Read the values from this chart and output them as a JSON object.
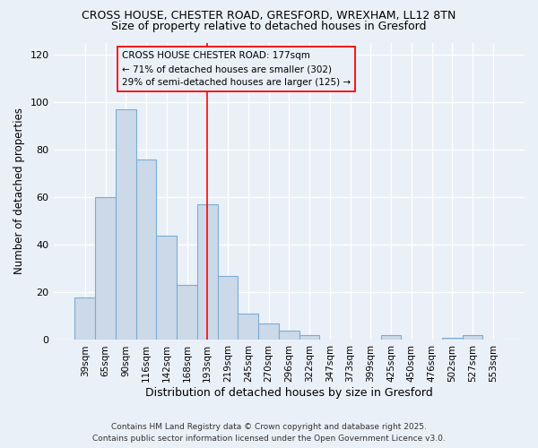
{
  "title1": "CROSS HOUSE, CHESTER ROAD, GRESFORD, WREXHAM, LL12 8TN",
  "title2": "Size of property relative to detached houses in Gresford",
  "xlabel": "Distribution of detached houses by size in Gresford",
  "ylabel": "Number of detached properties",
  "categories": [
    "39sqm",
    "65sqm",
    "90sqm",
    "116sqm",
    "142sqm",
    "168sqm",
    "193sqm",
    "219sqm",
    "245sqm",
    "270sqm",
    "296sqm",
    "322sqm",
    "347sqm",
    "373sqm",
    "399sqm",
    "425sqm",
    "450sqm",
    "476sqm",
    "502sqm",
    "527sqm",
    "553sqm"
  ],
  "values": [
    18,
    60,
    97,
    76,
    44,
    23,
    57,
    27,
    11,
    7,
    4,
    2,
    0,
    0,
    0,
    2,
    0,
    0,
    1,
    2,
    0
  ],
  "bar_color": "#ccd9e8",
  "bar_edge_color": "#7aadd4",
  "background_color": "#eaf0f8",
  "red_line_index": 6,
  "ylim": [
    0,
    125
  ],
  "yticks": [
    0,
    20,
    40,
    60,
    80,
    100,
    120
  ],
  "annotation_title": "CROSS HOUSE CHESTER ROAD: 177sqm",
  "annotation_line1": "← 71% of detached houses are smaller (302)",
  "annotation_line2": "29% of semi-detached houses are larger (125) →",
  "footer1": "Contains HM Land Registry data © Crown copyright and database right 2025.",
  "footer2": "Contains public sector information licensed under the Open Government Licence v3.0."
}
